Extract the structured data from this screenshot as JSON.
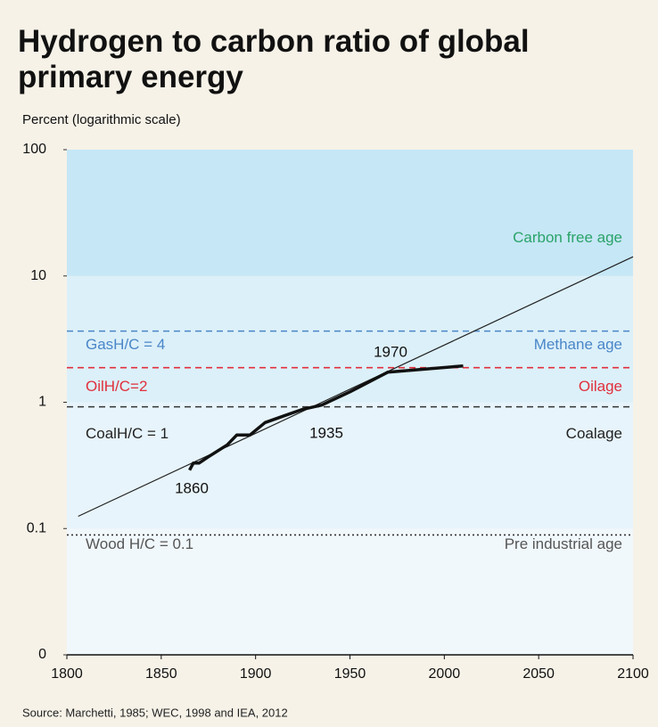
{
  "chart_data": {
    "type": "line",
    "title": [
      "Hydrogen to carbon ratio of global",
      "primary energy"
    ],
    "y_label": "Percent (logarithmic scale)",
    "source": "Source: Marchetti, 1985; WEC, 1998 and IEA, 2012",
    "log_y": true,
    "xlim": [
      1800,
      2100
    ],
    "xticks": [
      1800,
      1850,
      1900,
      1950,
      2000,
      2050,
      2100
    ],
    "ylim": [
      0.01,
      100
    ],
    "yticks": [
      {
        "value": 0.01,
        "label": "0"
      },
      0.1,
      1,
      10,
      100
    ],
    "top_band_label": "Carbon free age",
    "reference_lines": [
      {
        "label": "GasH/C = 4",
        "age": "Methane age",
        "value": 3.66,
        "color": "#4a86c8",
        "dash": "dashed"
      },
      {
        "label": "OilH/C=2",
        "age": "Oilage",
        "value": 1.88,
        "color": "#e0303c",
        "dash": "dashed"
      },
      {
        "label": "CoalH/C = 1",
        "age": "Coalage",
        "value": 0.92,
        "color": "#333333",
        "dash": "dashed"
      },
      {
        "label": "Wood H/C = 0.1",
        "age": "Pre industrial age",
        "value": 0.089,
        "color": "#333333",
        "dash": "dotted"
      }
    ],
    "series": [
      {
        "color": "#222222",
        "width": 1.2,
        "x": [
          1806,
          2100
        ],
        "values": [
          0.125,
          14.2
        ]
      },
      {
        "color": "#111111",
        "width": 3.5,
        "x": [
          1865,
          1867,
          1870,
          1875,
          1885,
          1890,
          1897,
          1905,
          1915,
          1925,
          1935,
          1950,
          1970,
          2010
        ],
        "values": [
          0.29,
          0.33,
          0.33,
          0.37,
          0.46,
          0.55,
          0.55,
          0.69,
          0.78,
          0.88,
          0.95,
          1.21,
          1.73,
          1.94
        ]
      }
    ],
    "annotations": [
      "1860",
      "1935",
      "1970"
    ]
  }
}
